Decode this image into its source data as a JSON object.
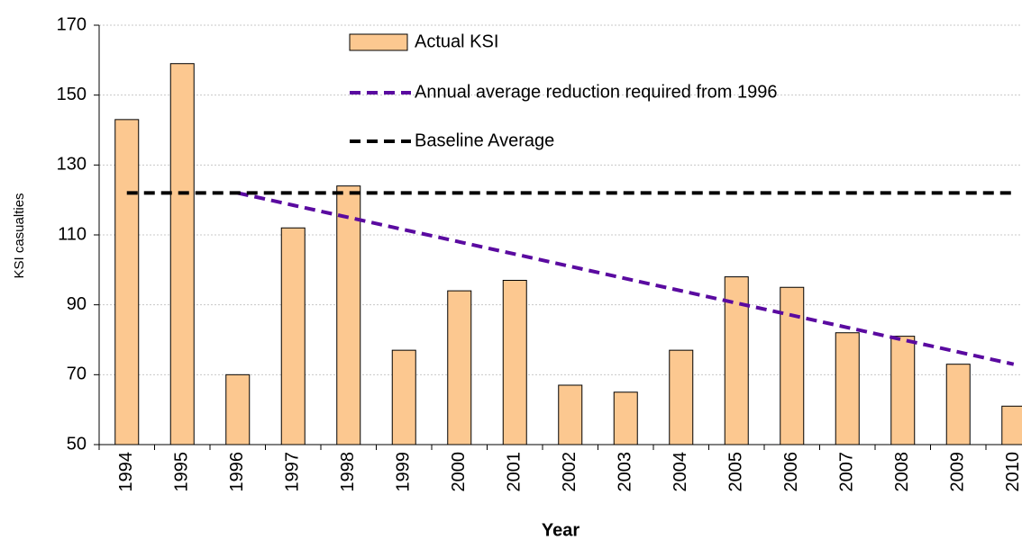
{
  "chart_data": {
    "type": "bar",
    "x_label": "Year",
    "y_label": "KSI casualties",
    "categories": [
      "1994",
      "1995",
      "1996",
      "1997",
      "1998",
      "1999",
      "2000",
      "2001",
      "2002",
      "2003",
      "2004",
      "2005",
      "2006",
      "2007",
      "2008",
      "2009",
      "2010"
    ],
    "series": [
      {
        "name": "Actual KSI",
        "type": "bar",
        "color": "#fcc890",
        "values": [
          143,
          159,
          70,
          112,
          124,
          77,
          94,
          97,
          67,
          65,
          77,
          98,
          95,
          82,
          81,
          73,
          61
        ]
      },
      {
        "name": "Annual average reduction required from 1996",
        "type": "line",
        "color": "#5a0aa0",
        "values": [
          null,
          null,
          122,
          118.5,
          115,
          111.5,
          108,
          104.5,
          101,
          97.5,
          94,
          90.5,
          87,
          83.5,
          80,
          76.5,
          73
        ]
      },
      {
        "name": "Baseline Average",
        "type": "line",
        "color": "#000000",
        "values": [
          122,
          122,
          122,
          122,
          122,
          122,
          122,
          122,
          122,
          122,
          122,
          122,
          122,
          122,
          122,
          122,
          122
        ]
      }
    ],
    "ylim": [
      50,
      170
    ],
    "yticks": [
      50,
      70,
      90,
      110,
      130,
      150,
      170
    ],
    "grid": true
  }
}
